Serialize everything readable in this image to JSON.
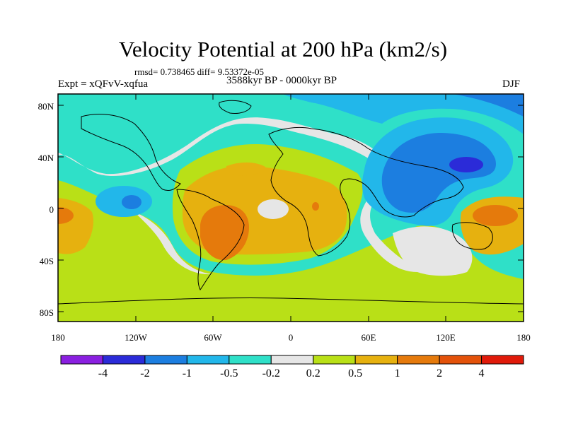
{
  "title": "Velocity Potential at 200 hPa (km2/s)",
  "stats_line": "rmsd= 0.738465 diff= 9.53372e-05",
  "experiment": "Expt = xQFvV-xqfua",
  "period": "3588kyr BP - 0000kyr BP",
  "season": "DJF",
  "map": {
    "lat_labels": [
      "80N",
      "40N",
      "0",
      "40S",
      "80S"
    ],
    "lon_labels": [
      "180",
      "120W",
      "60W",
      "0",
      "60E",
      "120E",
      "180"
    ]
  },
  "colorbar": {
    "labels": [
      "-4",
      "-2",
      "-1",
      "-0.5",
      "-0.2",
      "0.2",
      "0.5",
      "1",
      "2",
      "4"
    ],
    "colors": [
      "#8a1fe0",
      "#2b2bd8",
      "#1c7ee0",
      "#22b7ea",
      "#2fe0c8",
      "#e6e6e6",
      "#b9e017",
      "#e6b10f",
      "#e57a0c",
      "#e3520a",
      "#e01a0a"
    ]
  }
}
